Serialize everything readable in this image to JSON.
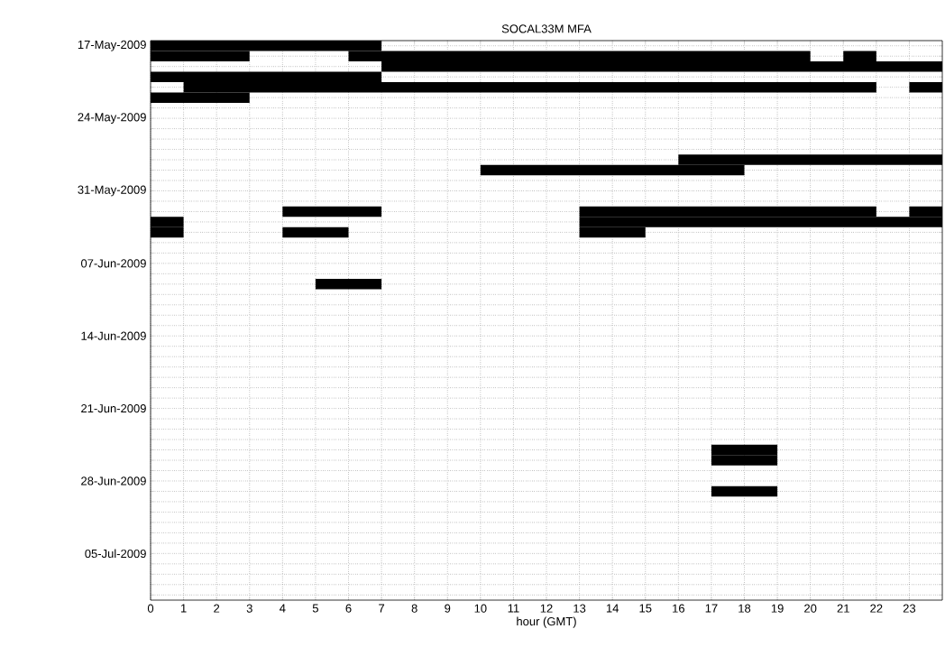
{
  "chart_data": {
    "type": "bar",
    "orientation": "horizontal",
    "title": "SOCAL33M MFA",
    "xlabel": "hour (GMT)",
    "categories": [
      "17-May-2009",
      null,
      null,
      null,
      null,
      null,
      null,
      "24-May-2009",
      null,
      null,
      null,
      null,
      null,
      null,
      "31-May-2009",
      null,
      null,
      null,
      null,
      null,
      null,
      "07-Jun-2009",
      null,
      null,
      null,
      null,
      null,
      null,
      "14-Jun-2009",
      null,
      null,
      null,
      null,
      null,
      null,
      "21-Jun-2009",
      null,
      null,
      null,
      null,
      null,
      null,
      "28-Jun-2009",
      null,
      null,
      null,
      null,
      null,
      null,
      "05-Jul-2009",
      null,
      null,
      null,
      null
    ],
    "xlim": [
      0,
      24
    ],
    "xticks": [
      0,
      1,
      2,
      3,
      4,
      5,
      6,
      7,
      8,
      9,
      10,
      11,
      12,
      13,
      14,
      15,
      16,
      17,
      18,
      19,
      20,
      21,
      22,
      23
    ],
    "grid": true,
    "series": [
      {
        "color": "#000000",
        "base": [
          0,
          0,
          7,
          0,
          1,
          0,
          null,
          null,
          null,
          null,
          null,
          16,
          10,
          null,
          null,
          null,
          4,
          0,
          0,
          null,
          null,
          null,
          null,
          5,
          null,
          null,
          null,
          null,
          null,
          null,
          null,
          null,
          null,
          null,
          null,
          null,
          null,
          null,
          null,
          17,
          17,
          null,
          null,
          17,
          null,
          null,
          null,
          null,
          null,
          null,
          null,
          null,
          null,
          null
        ],
        "values": [
          7,
          3,
          17,
          7,
          21,
          3,
          null,
          null,
          null,
          null,
          null,
          8,
          8,
          null,
          null,
          null,
          3,
          1,
          1,
          null,
          null,
          null,
          null,
          2,
          null,
          null,
          null,
          null,
          null,
          null,
          null,
          null,
          null,
          null,
          null,
          null,
          null,
          null,
          null,
          2,
          2,
          null,
          null,
          2,
          null,
          null,
          null,
          null,
          null,
          null,
          null,
          null,
          null,
          null
        ]
      },
      {
        "color": "#000000",
        "base": [
          null,
          6,
          null,
          null,
          23,
          null,
          null,
          null,
          null,
          null,
          null,
          null,
          null,
          null,
          null,
          null,
          13,
          13,
          4,
          null,
          null,
          null,
          null,
          null,
          null,
          null,
          null,
          null,
          null,
          null,
          null,
          null,
          null,
          null,
          null,
          null,
          null,
          null,
          null,
          null,
          null,
          null,
          null,
          null,
          null,
          null,
          null,
          null,
          null,
          null,
          null,
          null,
          null,
          null
        ],
        "values": [
          null,
          14,
          null,
          null,
          1,
          null,
          null,
          null,
          null,
          null,
          null,
          null,
          null,
          null,
          null,
          null,
          9,
          11,
          2,
          null,
          null,
          null,
          null,
          null,
          null,
          null,
          null,
          null,
          null,
          null,
          null,
          null,
          null,
          null,
          null,
          null,
          null,
          null,
          null,
          null,
          null,
          null,
          null,
          null,
          null,
          null,
          null,
          null,
          null,
          null,
          null,
          null,
          null,
          null
        ]
      },
      {
        "color": "#000000",
        "base": [
          null,
          21,
          null,
          null,
          null,
          null,
          null,
          null,
          null,
          null,
          null,
          null,
          null,
          null,
          null,
          null,
          23,
          null,
          13,
          null,
          null,
          null,
          null,
          null,
          null,
          null,
          null,
          null,
          null,
          null,
          null,
          null,
          null,
          null,
          null,
          null,
          null,
          null,
          null,
          null,
          null,
          null,
          null,
          null,
          null,
          null,
          null,
          null,
          null,
          null,
          null,
          null,
          null,
          null
        ],
        "values": [
          null,
          1,
          null,
          null,
          null,
          null,
          null,
          null,
          null,
          null,
          null,
          null,
          null,
          null,
          null,
          null,
          1,
          null,
          2,
          null,
          null,
          null,
          null,
          null,
          null,
          null,
          null,
          null,
          null,
          null,
          null,
          null,
          null,
          null,
          null,
          null,
          null,
          null,
          null,
          null,
          null,
          null,
          null,
          null,
          null,
          null,
          null,
          null,
          null,
          null,
          null,
          null,
          null,
          null
        ]
      }
    ]
  }
}
